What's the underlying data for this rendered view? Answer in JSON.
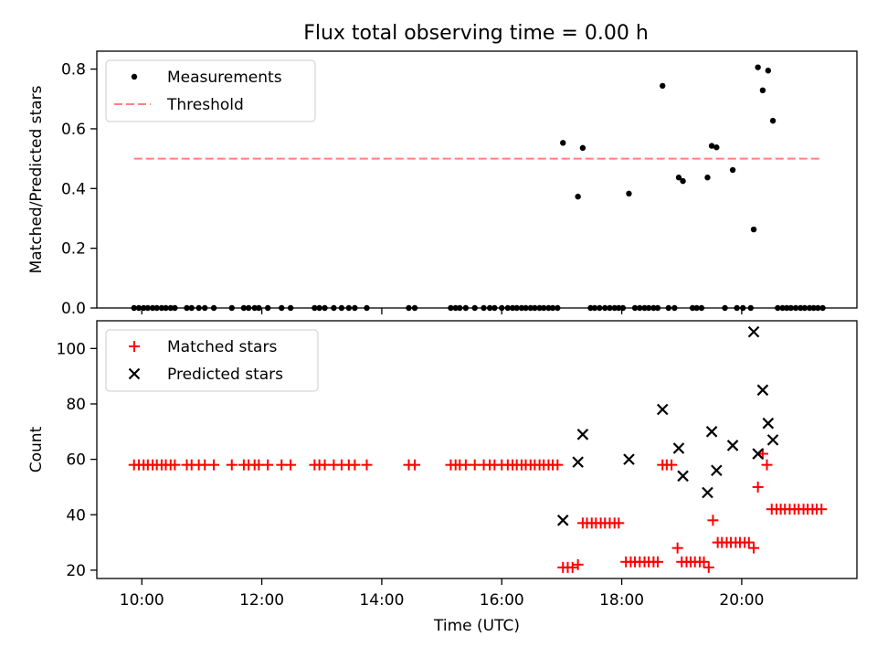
{
  "title": "Flux total observing time = 0.00 h",
  "chart_data": [
    {
      "type": "scatter",
      "panel": "top",
      "title": "Flux total observing time = 0.00 h",
      "xlabel": "",
      "ylabel": "Matched/Predicted stars",
      "x_unit": "hours UTC",
      "xlim": [
        9.25,
        21.92
      ],
      "ylim": [
        0,
        0.86
      ],
      "yticks": [
        0.0,
        0.2,
        0.4,
        0.6,
        0.8
      ],
      "ytick_labels": [
        "0.0",
        "0.2",
        "0.4",
        "0.6",
        "0.8"
      ],
      "xticks": [
        10,
        12,
        14,
        16,
        18,
        20
      ],
      "legend_position": "upper-left",
      "grid": false,
      "series": [
        {
          "name": "Measurements",
          "marker": "dot",
          "color": "#000000",
          "x": [
            9.87,
            9.95,
            10.03,
            10.1,
            10.18,
            10.25,
            10.33,
            10.4,
            10.48,
            10.55,
            10.75,
            10.83,
            10.95,
            11.05,
            11.2,
            11.5,
            11.7,
            11.78,
            11.88,
            11.95,
            12.1,
            12.33,
            12.48,
            12.88,
            12.96,
            13.05,
            13.2,
            13.33,
            13.45,
            13.55,
            13.75,
            14.45,
            14.55,
            15.15,
            15.23,
            15.3,
            15.4,
            15.55,
            15.7,
            15.8,
            15.88,
            16.0,
            16.1,
            16.18,
            16.25,
            16.33,
            16.4,
            16.48,
            16.55,
            16.63,
            16.7,
            16.78,
            16.85,
            16.93,
            17.02,
            17.27,
            17.35,
            17.48,
            17.55,
            17.63,
            17.72,
            17.8,
            17.88,
            17.95,
            18.02,
            18.12,
            18.22,
            18.3,
            18.38,
            18.45,
            18.53,
            18.6,
            18.68,
            18.78,
            18.88,
            18.95,
            19.02,
            19.18,
            19.25,
            19.33,
            19.43,
            19.5,
            19.58,
            19.72,
            19.85,
            19.92,
            20.02,
            20.15,
            20.2,
            20.27,
            20.35,
            20.44,
            20.52,
            20.6,
            20.68,
            20.75,
            20.82,
            20.9,
            20.98,
            21.05,
            21.13,
            21.2,
            21.27,
            21.35
          ],
          "y": [
            0,
            0,
            0,
            0,
            0,
            0,
            0,
            0,
            0,
            0,
            0,
            0,
            0,
            0,
            0,
            0,
            0,
            0,
            0,
            0,
            0,
            0,
            0,
            0,
            0,
            0,
            0,
            0,
            0,
            0,
            0,
            0,
            0,
            0,
            0,
            0,
            0,
            0,
            0,
            0,
            0,
            0,
            0,
            0,
            0,
            0,
            0,
            0,
            0,
            0,
            0,
            0,
            0,
            0,
            0.553,
            0.373,
            0.536,
            0,
            0,
            0,
            0,
            0,
            0,
            0,
            0,
            0.383,
            0,
            0,
            0,
            0,
            0,
            0,
            0.744,
            0,
            0,
            0.437,
            0.425,
            0,
            0,
            0,
            0.437,
            0.543,
            0.538,
            0,
            0.462,
            0,
            0,
            0,
            0.263,
            0.806,
            0.729,
            0.795,
            0.627,
            0,
            0,
            0,
            0,
            0,
            0,
            0,
            0,
            0,
            0,
            0
          ]
        },
        {
          "name": "Threshold",
          "marker": "dashed-line",
          "color": "#ff7f7f",
          "x": [
            9.87,
            21.35
          ],
          "y": [
            0.5,
            0.5
          ]
        }
      ]
    },
    {
      "type": "scatter",
      "panel": "bottom",
      "xlabel": "Time (UTC)",
      "ylabel": "Count",
      "x_unit": "hours UTC",
      "xlim": [
        9.25,
        21.92
      ],
      "ylim": [
        17,
        110
      ],
      "yticks": [
        20,
        40,
        60,
        80,
        100
      ],
      "ytick_labels": [
        "20",
        "40",
        "60",
        "80",
        "100"
      ],
      "xticks": [
        10,
        12,
        14,
        16,
        18,
        20
      ],
      "xtick_labels": [
        "10:00",
        "12:00",
        "14:00",
        "16:00",
        "18:00",
        "20:00"
      ],
      "legend_position": "upper-left",
      "grid": false,
      "series": [
        {
          "name": "Matched stars",
          "marker": "plus",
          "color": "#ff0000",
          "x": [
            9.87,
            9.95,
            10.03,
            10.1,
            10.18,
            10.25,
            10.33,
            10.4,
            10.48,
            10.55,
            10.75,
            10.83,
            10.95,
            11.05,
            11.2,
            11.5,
            11.7,
            11.78,
            11.88,
            11.95,
            12.1,
            12.33,
            12.48,
            12.88,
            12.96,
            13.05,
            13.2,
            13.33,
            13.45,
            13.55,
            13.75,
            14.45,
            14.55,
            15.15,
            15.23,
            15.3,
            15.4,
            15.55,
            15.7,
            15.8,
            15.88,
            16.0,
            16.1,
            16.18,
            16.25,
            16.33,
            16.4,
            16.48,
            16.55,
            16.63,
            16.7,
            16.78,
            16.85,
            16.93,
            17.02,
            17.1,
            17.18,
            17.27,
            17.35,
            17.42,
            17.5,
            17.57,
            17.65,
            17.72,
            17.8,
            17.88,
            17.95,
            18.07,
            18.15,
            18.22,
            18.3,
            18.38,
            18.45,
            18.53,
            18.6,
            18.68,
            18.75,
            18.83,
            18.93,
            19.0,
            19.08,
            19.15,
            19.22,
            19.3,
            19.37,
            19.45,
            19.52,
            19.6,
            19.67,
            19.75,
            19.82,
            19.9,
            19.97,
            20.05,
            20.12,
            20.2,
            20.27,
            20.35,
            20.42,
            20.5,
            20.58,
            20.65,
            20.72,
            20.8,
            20.88,
            20.95,
            21.03,
            21.1,
            21.18,
            21.25,
            21.33
          ],
          "y": [
            58,
            58,
            58,
            58,
            58,
            58,
            58,
            58,
            58,
            58,
            58,
            58,
            58,
            58,
            58,
            58,
            58,
            58,
            58,
            58,
            58,
            58,
            58,
            58,
            58,
            58,
            58,
            58,
            58,
            58,
            58,
            58,
            58,
            58,
            58,
            58,
            58,
            58,
            58,
            58,
            58,
            58,
            58,
            58,
            58,
            58,
            58,
            58,
            58,
            58,
            58,
            58,
            58,
            58,
            21,
            21,
            21,
            22,
            37,
            37,
            37,
            37,
            37,
            37,
            37,
            37,
            37,
            23,
            23,
            23,
            23,
            23,
            23,
            23,
            23,
            58,
            58,
            58,
            28,
            23,
            23,
            23,
            23,
            23,
            23,
            21,
            38,
            30,
            30,
            30,
            30,
            30,
            30,
            30,
            30,
            28,
            50,
            62,
            58,
            42,
            42,
            42,
            42,
            42,
            42,
            42,
            42,
            42,
            42,
            42,
            42
          ]
        },
        {
          "name": "Predicted stars",
          "marker": "x",
          "color": "#000000",
          "x": [
            17.02,
            17.27,
            17.35,
            18.12,
            18.68,
            18.95,
            19.02,
            19.43,
            19.5,
            19.58,
            19.85,
            20.2,
            20.27,
            20.35,
            20.44,
            20.52
          ],
          "y": [
            38,
            59,
            69,
            60,
            78,
            64,
            54,
            48,
            70,
            56,
            65,
            106,
            62,
            85,
            73,
            67
          ]
        }
      ]
    }
  ]
}
